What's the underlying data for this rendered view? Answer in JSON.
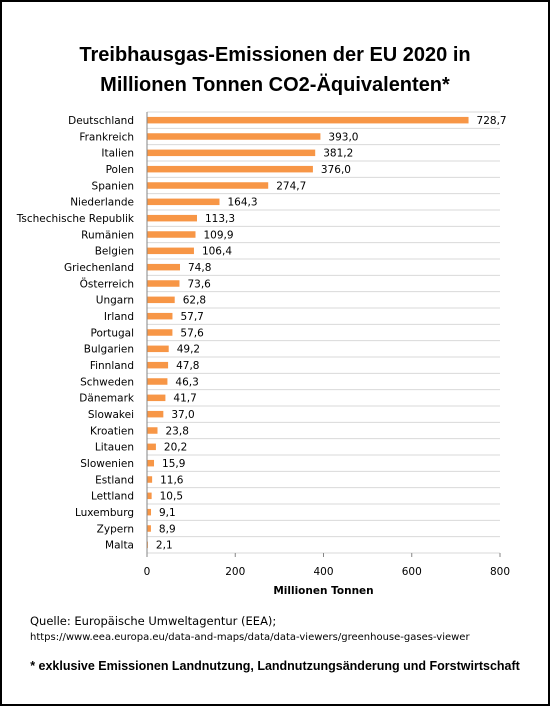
{
  "title_line1": "Treibhausgas-Emissionen der EU 2020 in",
  "title_line2": "Millionen Tonnen CO2-Äquivalenten*",
  "source_line1": "Quelle: Europäische Umweltagentur (EEA);",
  "source_line2": "https://www.eea.europa.eu/data-and-maps/data/data-viewers/greenhouse-gases-viewer",
  "footnote": "* exklusive Emissionen Landnutzung, Landnutzungsänderung und Forstwirtschaft",
  "chart_data": {
    "type": "bar",
    "orientation": "horizontal",
    "title": "Treibhausgas-Emissionen der EU 2020 in Millionen Tonnen CO2-Äquivalenten*",
    "xlabel": "Millionen Tonnen",
    "ylabel": "",
    "xlim": [
      0,
      800
    ],
    "xticks": [
      0,
      200,
      400,
      600,
      800
    ],
    "grid": true,
    "bar_color": "#f79646",
    "categories": [
      "Deutschland",
      "Frankreich",
      "Italien",
      "Polen",
      "Spanien",
      "Niederlande",
      "Tschechische Republik",
      "Rumänien",
      "Belgien",
      "Griechenland",
      "Österreich",
      "Ungarn",
      "Irland",
      "Portugal",
      "Bulgarien",
      "Finnland",
      "Schweden",
      "Dänemark",
      "Slowakei",
      "Kroatien",
      "Litauen",
      "Slowenien",
      "Estland",
      "Lettland",
      "Luxemburg",
      "Zypern",
      "Malta"
    ],
    "values": [
      728.7,
      393.0,
      381.2,
      376.0,
      274.7,
      164.3,
      113.3,
      109.9,
      106.4,
      74.8,
      73.6,
      62.8,
      57.7,
      57.6,
      49.2,
      47.8,
      46.3,
      41.7,
      37.0,
      23.8,
      20.2,
      15.9,
      11.6,
      10.5,
      9.1,
      8.9,
      2.1
    ],
    "value_labels": [
      "728,7",
      "393,0",
      "381,2",
      "376,0",
      "274,7",
      "164,3",
      "113,3",
      "109,9",
      "106,4",
      "74,8",
      "73,6",
      "62,8",
      "57,7",
      "57,6",
      "49,2",
      "47,8",
      "46,3",
      "41,7",
      "37,0",
      "23,8",
      "20,2",
      "15,9",
      "11,6",
      "10,5",
      "9,1",
      "8,9",
      "2,1"
    ]
  }
}
